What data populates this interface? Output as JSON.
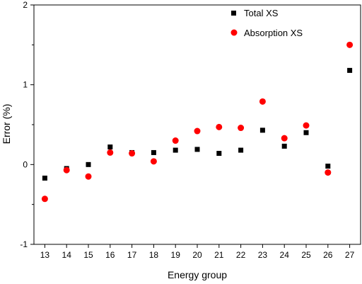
{
  "chart_data": {
    "type": "scatter",
    "xlabel": "Energy group",
    "ylabel": "Error (%)",
    "x": [
      13,
      14,
      15,
      16,
      17,
      18,
      19,
      20,
      21,
      22,
      23,
      24,
      25,
      26,
      27
    ],
    "x_ticks": [
      "13",
      "14",
      "15",
      "16",
      "17",
      "18",
      "19",
      "20",
      "21",
      "22",
      "23",
      "24",
      "25",
      "26",
      "27"
    ],
    "y_ticks": [
      "2",
      "1",
      "0",
      "-1"
    ],
    "xlim": [
      12.5,
      27.5
    ],
    "ylim": [
      -1,
      2
    ],
    "grid": false,
    "legend_position": "top-right",
    "series": [
      {
        "name": "Total XS",
        "marker": "square",
        "color": "#000000",
        "values": [
          -0.17,
          -0.05,
          0.0,
          0.22,
          0.15,
          0.15,
          0.18,
          0.19,
          0.14,
          0.18,
          0.43,
          0.23,
          0.4,
          -0.02,
          1.18
        ]
      },
      {
        "name": "Absorption XS",
        "marker": "circle",
        "color": "#ff0000",
        "values": [
          -0.43,
          -0.07,
          -0.15,
          0.15,
          0.14,
          0.04,
          0.3,
          0.42,
          0.47,
          0.46,
          0.79,
          0.33,
          0.49,
          -0.1,
          1.5
        ]
      }
    ]
  }
}
